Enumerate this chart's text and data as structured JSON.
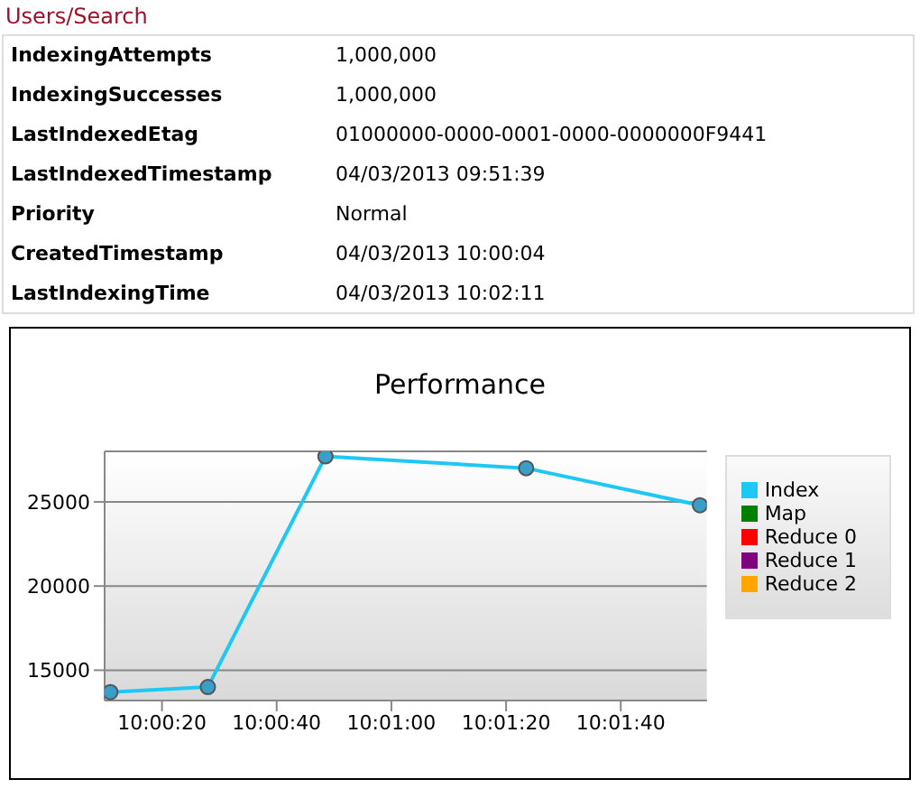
{
  "chart_data": {
    "type": "line",
    "title": "Performance",
    "annotations": [
      "Users/Search",
      "IndexingAttempts",
      "1,000,000",
      "IndexingSuccesses",
      "1,000,000",
      "LastIndexedEtag",
      "01000000-0000-0001-0000-0000000F9441",
      "LastIndexedTimestamp",
      "04/03/2013 09:51:39",
      "Priority",
      "Normal",
      "CreatedTimestamp",
      "04/03/2013 10:00:04",
      "LastIndexingTime",
      "04/03/2013 10:02:11"
    ],
    "x": [
      10.003056,
      10.007778,
      10.013472,
      10.023194,
      10.031611
    ],
    "series": [
      {
        "name": "Index",
        "color": "#1ec8f5",
        "values": [
          13700,
          14000,
          27700,
          27000,
          24800
        ]
      },
      {
        "name": "Map",
        "color": "#008000",
        "values": [
          null,
          null,
          null,
          null,
          null
        ]
      },
      {
        "name": "Reduce 0",
        "color": "#ff0000",
        "values": [
          null,
          null,
          null,
          null,
          null
        ]
      },
      {
        "name": "Reduce 1",
        "color": "#800080",
        "values": [
          null,
          null,
          null,
          null,
          null
        ]
      },
      {
        "name": "Reduce 2",
        "color": "#ffa500",
        "values": [
          null,
          null,
          null,
          null,
          null
        ]
      }
    ],
    "xlim": [
      10.002778,
      10.031944
    ],
    "xticks": [
      {
        "value": 10.005556,
        "label": "10:00:20"
      },
      {
        "value": 10.011111,
        "label": "10:00:40"
      },
      {
        "value": 10.016667,
        "label": "10:01:00"
      },
      {
        "value": 10.022222,
        "label": "10:01:20"
      },
      {
        "value": 10.027778,
        "label": "10:01:40"
      }
    ],
    "ylim": [
      13200,
      28000
    ],
    "yticks": [
      15000,
      20000,
      25000
    ],
    "grid": "y",
    "legend": "right",
    "marker": "circle",
    "line_style": "solid"
  }
}
